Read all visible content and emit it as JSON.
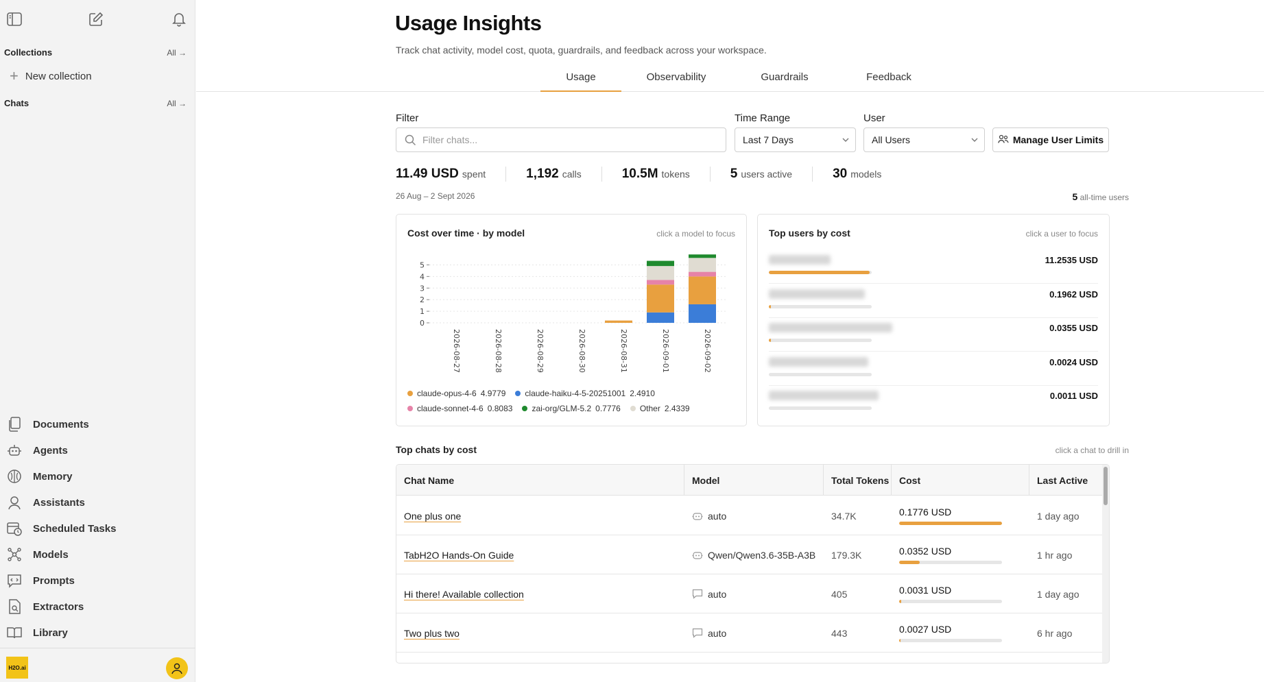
{
  "sidebar": {
    "collections_label": "Collections",
    "collections_all": "All →",
    "new_collection": "New collection",
    "chats_label": "Chats",
    "chats_all": "All →",
    "nav": [
      {
        "label": "Documents",
        "icon": "documents-icon"
      },
      {
        "label": "Agents",
        "icon": "agent-icon"
      },
      {
        "label": "Memory",
        "icon": "memory-icon"
      },
      {
        "label": "Assistants",
        "icon": "assistant-icon"
      },
      {
        "label": "Scheduled Tasks",
        "icon": "calendar-clock-icon"
      },
      {
        "label": "Models",
        "icon": "models-icon"
      },
      {
        "label": "Prompts",
        "icon": "prompt-icon"
      },
      {
        "label": "Extractors",
        "icon": "extractor-icon"
      },
      {
        "label": "Library",
        "icon": "library-icon"
      }
    ],
    "logo_text": "H2O.ai"
  },
  "header": {
    "title": "Usage Insights",
    "subtitle": "Track chat activity, model cost, quota, guardrails, and feedback across your workspace."
  },
  "tabs": [
    {
      "label": "Usage",
      "active": true
    },
    {
      "label": "Observability",
      "active": false
    },
    {
      "label": "Guardrails",
      "active": false
    },
    {
      "label": "Feedback",
      "active": false
    }
  ],
  "filters": {
    "filter_label": "Filter",
    "filter_placeholder": "Filter chats...",
    "time_label": "Time Range",
    "time_value": "Last 7 Days",
    "user_label": "User",
    "user_value": "All Users",
    "manage_button": "Manage User Limits"
  },
  "stats": [
    {
      "value": "11.49 USD",
      "unit": "spent"
    },
    {
      "value": "1,192",
      "unit": "calls"
    },
    {
      "value": "10.5M",
      "unit": "tokens"
    },
    {
      "value": "5",
      "unit": "users active"
    },
    {
      "value": "30",
      "unit": "models"
    }
  ],
  "date_range": "26 Aug – 2 Sept 2026",
  "all_time": {
    "value": "5",
    "label": "all-time users"
  },
  "cost_card": {
    "title": "Cost over time · by model",
    "hint": "click a model to focus"
  },
  "chart_data": {
    "type": "bar",
    "stacked": true,
    "categories": [
      "2026-08-27",
      "2026-08-28",
      "2026-08-29",
      "2026-08-30",
      "2026-08-31",
      "2026-09-01",
      "2026-09-02"
    ],
    "ylim": [
      0,
      5.5
    ],
    "yticks": [
      0,
      1,
      2,
      3,
      4,
      5
    ],
    "grid": true,
    "series": [
      {
        "name": "claude-haiku-4-5-20251001",
        "total": "2.4910",
        "color": "#3b7dd8",
        "values": [
          0,
          0,
          0,
          0,
          0,
          0.9,
          1.6
        ]
      },
      {
        "name": "claude-opus-4-6",
        "total": "4.9779",
        "color": "#e8a03f",
        "values": [
          0,
          0,
          0,
          0,
          0.2,
          2.4,
          2.4
        ]
      },
      {
        "name": "claude-sonnet-4-6",
        "total": "0.8083",
        "color": "#e683a8",
        "values": [
          0,
          0,
          0,
          0,
          0,
          0.4,
          0.4
        ]
      },
      {
        "name": "Other",
        "total": "2.4339",
        "color": "#e0dcd2",
        "values": [
          0,
          0,
          0,
          0,
          0,
          1.2,
          1.2
        ]
      },
      {
        "name": "zai-org/GLM-5.2",
        "total": "0.7776",
        "color": "#1f8a2e",
        "values": [
          0,
          0,
          0,
          0,
          0,
          0.45,
          0.3
        ]
      }
    ],
    "legend_order": [
      [
        "claude-opus-4-6",
        "claude-haiku-4-5-20251001"
      ],
      [
        "claude-sonnet-4-6",
        "zai-org/GLM-5.2",
        "Other"
      ]
    ]
  },
  "users_card": {
    "title": "Top users by cost",
    "hint": "click a user to focus",
    "users": [
      {
        "cost": "11.2535 USD",
        "share": 0.98
      },
      {
        "cost": "0.1962 USD",
        "share": 0.017
      },
      {
        "cost": "0.0355 USD",
        "share": 0.01
      },
      {
        "cost": "0.0024 USD",
        "share": 0.0
      },
      {
        "cost": "0.0011 USD",
        "share": 0.0
      }
    ]
  },
  "chats_section": {
    "title": "Top chats by cost",
    "hint": "click a chat to drill in",
    "columns": [
      "Chat Name",
      "Model",
      "Total Tokens",
      "Cost",
      "Last Active"
    ],
    "rows": [
      {
        "name": "One plus one",
        "model": "auto",
        "model_icon": "robot-icon",
        "tokens": "34.7K",
        "cost": "0.1776 USD",
        "share": 1.0,
        "last_active": "1 day ago"
      },
      {
        "name": "TabH2O Hands-On Guide",
        "model": "Qwen/Qwen3.6-35B-A3B",
        "model_icon": "robot-icon",
        "tokens": "179.3K",
        "cost": "0.0352 USD",
        "share": 0.2,
        "last_active": "1 hr ago"
      },
      {
        "name": "Hi there! Available collection",
        "model": "auto",
        "model_icon": "chat-icon",
        "tokens": "405",
        "cost": "0.0031 USD",
        "share": 0.017,
        "last_active": "1 day ago"
      },
      {
        "name": "Two plus two",
        "model": "auto",
        "model_icon": "chat-icon",
        "tokens": "443",
        "cost": "0.0027 USD",
        "share": 0.015,
        "last_active": "6 hr ago"
      }
    ]
  }
}
